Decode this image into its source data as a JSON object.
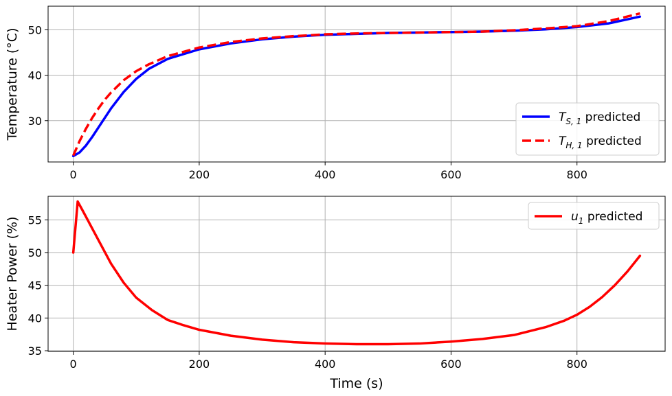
{
  "chart_data": [
    {
      "type": "line",
      "xlabel": "",
      "ylabel": "Temperature (°C)",
      "xlim": [
        -40,
        940
      ],
      "ylim": [
        20.9,
        55.2
      ],
      "xticks": [
        0,
        200,
        400,
        600,
        800
      ],
      "yticks": [
        30,
        40,
        50
      ],
      "grid": true,
      "legend_position": "lower-right",
      "series": [
        {
          "name_main": "T",
          "name_sub": "S, 1",
          "name_suffix": " predicted",
          "color": "#0000ff",
          "style": "solid",
          "x": [
            0,
            10,
            20,
            30,
            40,
            50,
            60,
            80,
            100,
            120,
            150,
            200,
            250,
            300,
            350,
            400,
            450,
            500,
            550,
            600,
            650,
            700,
            750,
            800,
            850,
            900
          ],
          "y": [
            22.2,
            23.0,
            24.5,
            26.4,
            28.5,
            30.6,
            32.7,
            36.3,
            39.2,
            41.4,
            43.6,
            45.7,
            47.0,
            47.9,
            48.5,
            48.9,
            49.1,
            49.3,
            49.4,
            49.5,
            49.6,
            49.8,
            50.1,
            50.6,
            51.4,
            52.9
          ]
        },
        {
          "name_main": "T",
          "name_sub": "H, 1",
          "name_suffix": " predicted",
          "color": "#ff0000",
          "style": "dashed",
          "x": [
            0,
            10,
            20,
            30,
            40,
            50,
            60,
            80,
            100,
            120,
            150,
            200,
            250,
            300,
            350,
            400,
            450,
            500,
            550,
            600,
            650,
            700,
            750,
            800,
            850,
            900
          ],
          "y": [
            22.3,
            25.5,
            28.2,
            30.6,
            32.7,
            34.6,
            36.2,
            38.9,
            40.9,
            42.4,
            44.2,
            46.1,
            47.3,
            48.1,
            48.6,
            49.0,
            49.2,
            49.3,
            49.4,
            49.5,
            49.6,
            49.9,
            50.3,
            50.8,
            51.9,
            53.6
          ]
        }
      ]
    },
    {
      "type": "line",
      "xlabel": "Time (s)",
      "ylabel": "Heater Power (%)",
      "xlim": [
        -40,
        940
      ],
      "ylim": [
        34.9,
        58.6
      ],
      "xticks": [
        0,
        200,
        400,
        600,
        800
      ],
      "yticks": [
        35,
        40,
        45,
        50,
        55
      ],
      "grid": true,
      "legend_position": "upper-right",
      "series": [
        {
          "name_main": "u",
          "name_sub": "1",
          "name_suffix": " predicted",
          "color": "#ff0000",
          "style": "solid",
          "x": [
            0,
            7,
            15,
            25,
            40,
            60,
            80,
            100,
            125,
            150,
            175,
            200,
            250,
            300,
            350,
            400,
            450,
            500,
            550,
            600,
            650,
            700,
            750,
            780,
            800,
            820,
            840,
            860,
            880,
            900
          ],
          "y": [
            50.0,
            57.8,
            56.4,
            54.6,
            51.9,
            48.3,
            45.4,
            43.1,
            41.2,
            39.7,
            38.9,
            38.2,
            37.3,
            36.7,
            36.3,
            36.1,
            36.0,
            36.0,
            36.1,
            36.4,
            36.8,
            37.4,
            38.6,
            39.6,
            40.5,
            41.7,
            43.2,
            45.0,
            47.1,
            49.5
          ]
        }
      ]
    }
  ]
}
